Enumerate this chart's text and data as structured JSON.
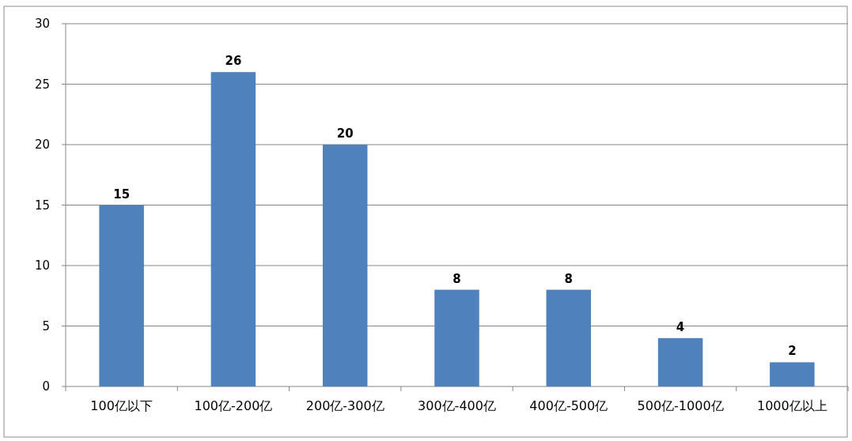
{
  "chart_data": {
    "type": "bar",
    "categories": [
      "100亿以下",
      "100亿-200亿",
      "200亿-300亿",
      "300亿-400亿",
      "400亿-500亿",
      "500亿-1000亿",
      "1000亿以上"
    ],
    "values": [
      15,
      26,
      20,
      8,
      8,
      4,
      2
    ],
    "color": "#4f81bd",
    "ylim": [
      0,
      30
    ],
    "yticks": [
      0,
      5,
      10,
      15,
      20,
      25,
      30
    ],
    "grid": "y",
    "data_labels": true
  }
}
